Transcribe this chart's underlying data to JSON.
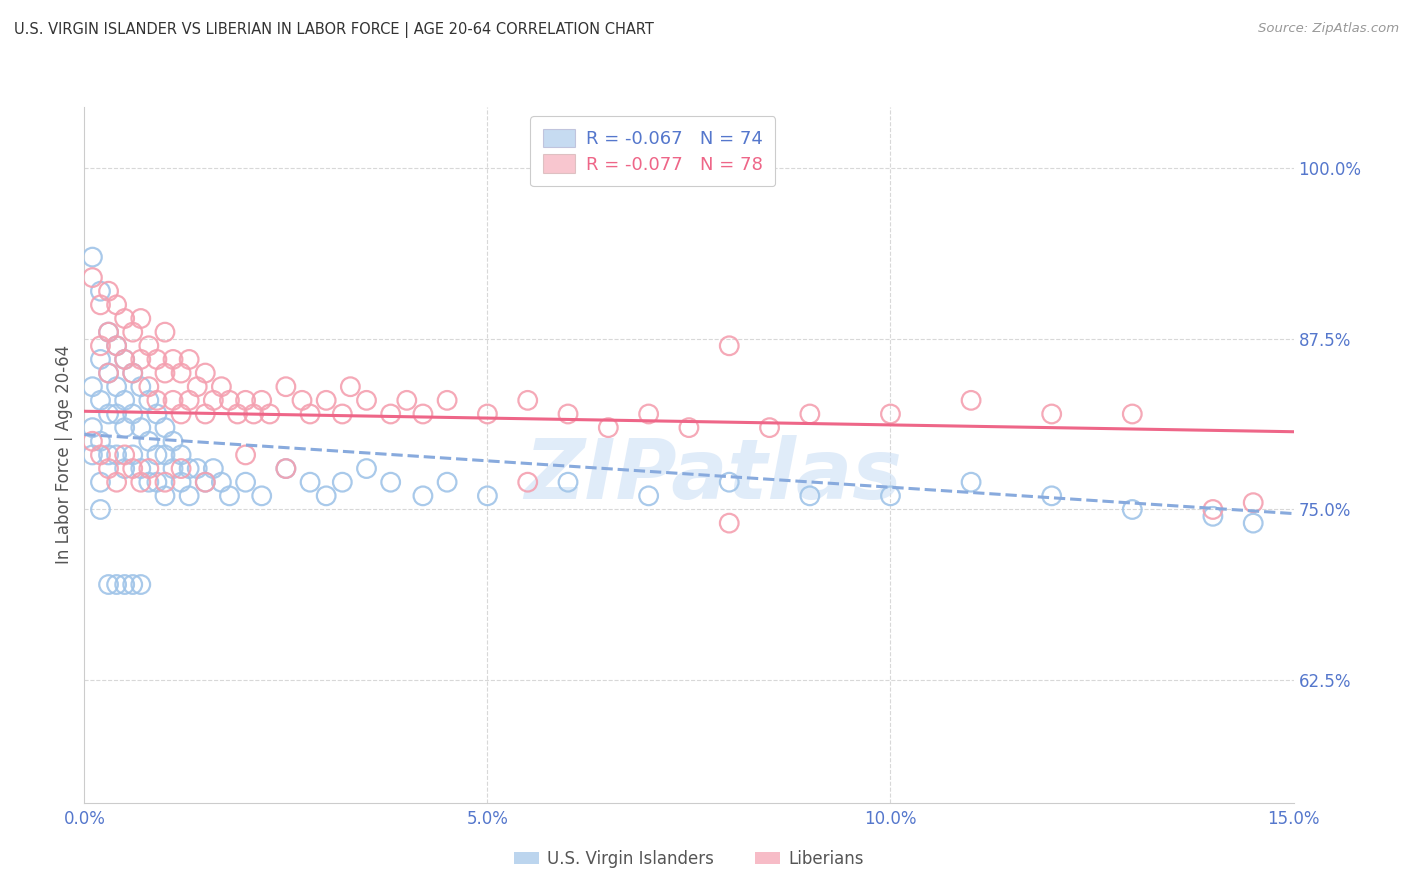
{
  "title": "U.S. VIRGIN ISLANDER VS LIBERIAN IN LABOR FORCE | AGE 20-64 CORRELATION CHART",
  "source": "Source: ZipAtlas.com",
  "ylabel": "In Labor Force | Age 20-64",
  "right_ytick_vals": [
    0.625,
    0.75,
    0.875,
    1.0
  ],
  "right_ytick_labels": [
    "62.5%",
    "75.0%",
    "87.5%",
    "100.0%"
  ],
  "series1_label": "U.S. Virgin Islanders",
  "series2_label": "Liberians",
  "color_blue": "#a0c4e8",
  "color_pink": "#f4a0b0",
  "color_blue_line": "#88aadd",
  "color_pink_line": "#ee6688",
  "color_axis_labels": "#5577cc",
  "grid_color": "#d8d8d8",
  "background_color": "#ffffff",
  "watermark_text": "ZIPatlas",
  "xmin": 0.0,
  "xmax": 0.15,
  "ymin": 0.535,
  "ymax": 1.045,
  "blue_scatter_x": [
    0.001,
    0.001,
    0.001,
    0.002,
    0.002,
    0.002,
    0.002,
    0.002,
    0.003,
    0.003,
    0.003,
    0.003,
    0.004,
    0.004,
    0.004,
    0.004,
    0.005,
    0.005,
    0.005,
    0.005,
    0.006,
    0.006,
    0.006,
    0.007,
    0.007,
    0.007,
    0.008,
    0.008,
    0.008,
    0.009,
    0.009,
    0.009,
    0.01,
    0.01,
    0.01,
    0.011,
    0.011,
    0.012,
    0.012,
    0.013,
    0.013,
    0.014,
    0.015,
    0.016,
    0.017,
    0.018,
    0.02,
    0.022,
    0.025,
    0.028,
    0.03,
    0.032,
    0.035,
    0.038,
    0.042,
    0.045,
    0.05,
    0.06,
    0.07,
    0.08,
    0.09,
    0.1,
    0.11,
    0.12,
    0.13,
    0.14,
    0.145,
    0.001,
    0.002,
    0.003,
    0.004,
    0.005,
    0.006,
    0.007
  ],
  "blue_scatter_y": [
    0.84,
    0.81,
    0.79,
    0.86,
    0.83,
    0.8,
    0.77,
    0.75,
    0.88,
    0.85,
    0.82,
    0.79,
    0.87,
    0.84,
    0.82,
    0.79,
    0.86,
    0.83,
    0.81,
    0.78,
    0.85,
    0.82,
    0.79,
    0.84,
    0.81,
    0.78,
    0.83,
    0.8,
    0.77,
    0.82,
    0.79,
    0.77,
    0.81,
    0.79,
    0.76,
    0.8,
    0.78,
    0.79,
    0.77,
    0.78,
    0.76,
    0.78,
    0.77,
    0.78,
    0.77,
    0.76,
    0.77,
    0.76,
    0.78,
    0.77,
    0.76,
    0.77,
    0.78,
    0.77,
    0.76,
    0.77,
    0.76,
    0.77,
    0.76,
    0.77,
    0.76,
    0.76,
    0.77,
    0.76,
    0.75,
    0.745,
    0.74,
    0.935,
    0.91,
    0.695,
    0.695,
    0.695,
    0.695,
    0.695
  ],
  "pink_scatter_x": [
    0.001,
    0.002,
    0.002,
    0.003,
    0.003,
    0.003,
    0.004,
    0.004,
    0.005,
    0.005,
    0.006,
    0.006,
    0.007,
    0.007,
    0.008,
    0.008,
    0.009,
    0.009,
    0.01,
    0.01,
    0.011,
    0.011,
    0.012,
    0.012,
    0.013,
    0.013,
    0.014,
    0.015,
    0.015,
    0.016,
    0.017,
    0.018,
    0.019,
    0.02,
    0.021,
    0.022,
    0.023,
    0.025,
    0.027,
    0.028,
    0.03,
    0.032,
    0.033,
    0.035,
    0.038,
    0.04,
    0.042,
    0.045,
    0.05,
    0.055,
    0.06,
    0.065,
    0.07,
    0.075,
    0.08,
    0.085,
    0.09,
    0.1,
    0.11,
    0.12,
    0.13,
    0.14,
    0.145,
    0.001,
    0.002,
    0.003,
    0.004,
    0.005,
    0.006,
    0.007,
    0.008,
    0.01,
    0.012,
    0.015,
    0.02,
    0.025,
    0.055,
    0.08
  ],
  "pink_scatter_y": [
    0.92,
    0.9,
    0.87,
    0.91,
    0.88,
    0.85,
    0.9,
    0.87,
    0.89,
    0.86,
    0.88,
    0.85,
    0.89,
    0.86,
    0.87,
    0.84,
    0.86,
    0.83,
    0.88,
    0.85,
    0.86,
    0.83,
    0.85,
    0.82,
    0.86,
    0.83,
    0.84,
    0.85,
    0.82,
    0.83,
    0.84,
    0.83,
    0.82,
    0.83,
    0.82,
    0.83,
    0.82,
    0.84,
    0.83,
    0.82,
    0.83,
    0.82,
    0.84,
    0.83,
    0.82,
    0.83,
    0.82,
    0.83,
    0.82,
    0.83,
    0.82,
    0.81,
    0.82,
    0.81,
    0.87,
    0.81,
    0.82,
    0.82,
    0.83,
    0.82,
    0.82,
    0.75,
    0.755,
    0.8,
    0.79,
    0.78,
    0.77,
    0.79,
    0.78,
    0.77,
    0.78,
    0.77,
    0.78,
    0.77,
    0.79,
    0.78,
    0.77,
    0.74
  ],
  "blue_trend_x": [
    0.0,
    0.15
  ],
  "blue_trend_y": [
    0.805,
    0.747
  ],
  "pink_trend_x": [
    0.0,
    0.15
  ],
  "pink_trend_y": [
    0.822,
    0.807
  ]
}
